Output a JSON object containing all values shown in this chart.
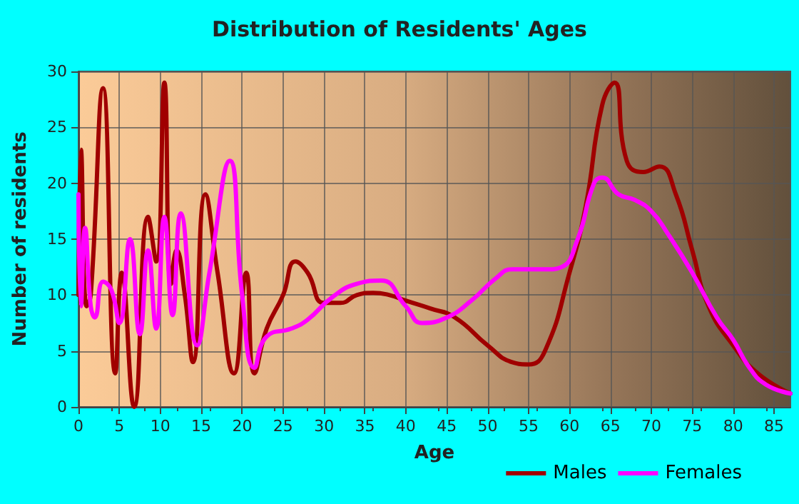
{
  "chart_data": {
    "type": "line",
    "title": "Distribution of Residents' Ages",
    "xlabel": "Age",
    "ylabel": "Number of residents",
    "xlim": [
      0,
      87
    ],
    "xticks": [
      0,
      5,
      10,
      15,
      20,
      25,
      30,
      35,
      40,
      45,
      50,
      55,
      60,
      65,
      70,
      75,
      80,
      85
    ],
    "ylim": [
      0,
      30
    ],
    "yticks": [
      0,
      5,
      10,
      15,
      20,
      25,
      30
    ],
    "grid": true,
    "legend": "bottom right",
    "marker": "none",
    "line_style": "solid",
    "series": [
      {
        "name": "Males",
        "color": "#a00000",
        "x": [
          0,
          0.3,
          1,
          1.5,
          3,
          4.5,
          5.3,
          6.8,
          8.5,
          9.5,
          10.5,
          11.3,
          12,
          13,
          14,
          15.5,
          17,
          19,
          20.5,
          21.5,
          23,
          25,
          26.5,
          28,
          30,
          32,
          34,
          36,
          38,
          40,
          43,
          46,
          50,
          53,
          55,
          57,
          60,
          62,
          64,
          65.5,
          67,
          69,
          71,
          73,
          75,
          77,
          80,
          83,
          87
        ],
        "values": [
          10,
          23,
          9,
          10,
          28.5,
          3,
          12,
          0,
          17,
          13,
          29,
          11,
          14,
          10,
          4,
          19,
          12,
          3,
          12,
          3,
          7,
          10,
          13,
          12,
          9.3,
          9.3,
          10,
          10.2,
          10,
          9.5,
          8.8,
          8,
          5.5,
          4,
          3.8,
          5,
          12,
          18,
          27,
          29,
          22,
          21,
          21.5,
          19,
          14,
          9,
          5.5,
          3,
          1.2
        ]
      },
      {
        "name": "Females",
        "color": "#ff00ff",
        "x": [
          0,
          0.3,
          0.8,
          1.5,
          2,
          3,
          4,
          5,
          6.3,
          7.5,
          8.5,
          9.5,
          10.5,
          11.5,
          12.5,
          14.5,
          16,
          18.5,
          20,
          21.5,
          23,
          26,
          28,
          31,
          34,
          37,
          40,
          42,
          45,
          48,
          51,
          53,
          57,
          59,
          61,
          63,
          64,
          66,
          68,
          70,
          72,
          75,
          78,
          80,
          82,
          84,
          87
        ],
        "values": [
          19,
          9,
          16,
          9,
          8,
          11.2,
          10.5,
          7.5,
          15,
          6.5,
          14,
          7,
          17,
          8.2,
          17.3,
          5.5,
          12,
          22,
          10,
          3.5,
          6.3,
          7,
          7.8,
          9.8,
          11,
          11.3,
          9,
          7.5,
          8,
          9.5,
          11.5,
          12.3,
          12.3,
          12.5,
          15,
          20,
          20.5,
          19,
          18.5,
          17.5,
          15.5,
          12,
          8,
          6,
          3.5,
          2,
          1.2
        ]
      }
    ]
  }
}
